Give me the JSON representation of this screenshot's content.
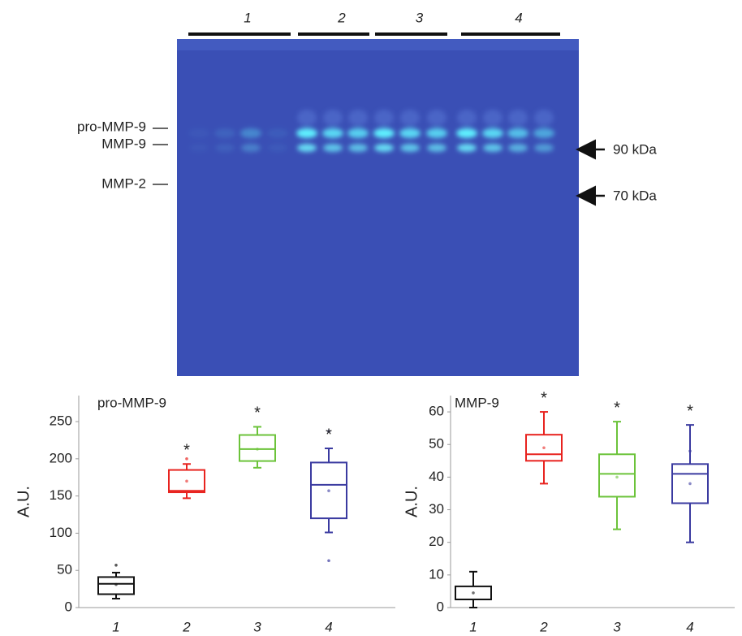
{
  "gel": {
    "lane_groups": [
      "1",
      "2",
      "3",
      "4"
    ],
    "bands": [
      "pro-MMP-9",
      "MMP-9",
      "MMP-2"
    ],
    "markers": [
      "90 kDa",
      "70 kDa"
    ]
  },
  "chart_data": [
    {
      "type": "box",
      "title": "pro-MMP-9",
      "y_label": "A.U.",
      "categories": [
        "1",
        "2",
        "3",
        "4"
      ],
      "ylim": [
        0,
        285
      ],
      "yticks": [
        0,
        50,
        100,
        150,
        200,
        250
      ],
      "annotations": [
        null,
        "*",
        "*",
        "*"
      ],
      "boxes": [
        {
          "color": "#111111",
          "whisker_low": 12,
          "q1": 18,
          "median": 32,
          "q3": 41,
          "whisker_high": 47,
          "mean": 31,
          "outliers": [
            57
          ]
        },
        {
          "color": "#e8231f",
          "whisker_low": 147,
          "q1": 155,
          "median": 157,
          "q3": 185,
          "whisker_high": 193,
          "mean": 170,
          "outliers": [
            200
          ]
        },
        {
          "color": "#6cc33a",
          "whisker_low": 188,
          "q1": 197,
          "median": 213,
          "q3": 232,
          "whisker_high": 243,
          "mean": 213,
          "outliers": []
        },
        {
          "color": "#3a3aa0",
          "whisker_low": 101,
          "q1": 120,
          "median": 165,
          "q3": 195,
          "whisker_high": 214,
          "mean": 157,
          "outliers": [
            237,
            63
          ]
        }
      ]
    },
    {
      "type": "box",
      "title": "MMP-9",
      "y_label": "A.U.",
      "categories": [
        "1",
        "2",
        "3",
        "4"
      ],
      "ylim": [
        0,
        65
      ],
      "yticks": [
        0,
        10,
        20,
        30,
        40,
        50,
        60
      ],
      "annotations": [
        null,
        "*",
        "*",
        "*"
      ],
      "boxes": [
        {
          "color": "#111111",
          "whisker_low": 0,
          "q1": 2.5,
          "median": 2.5,
          "q3": 6.5,
          "whisker_high": 11,
          "mean": 4.5,
          "outliers": []
        },
        {
          "color": "#e8231f",
          "whisker_low": 38,
          "q1": 45,
          "median": 47,
          "q3": 53,
          "whisker_high": 60,
          "mean": 49,
          "outliers": []
        },
        {
          "color": "#6cc33a",
          "whisker_low": 24,
          "q1": 34,
          "median": 41,
          "q3": 47,
          "whisker_high": 57,
          "mean": 40,
          "outliers": []
        },
        {
          "color": "#3a3aa0",
          "whisker_low": 20,
          "q1": 32,
          "median": 41,
          "q3": 44,
          "whisker_high": 56,
          "mean": 38,
          "outliers": [
            48
          ]
        }
      ]
    }
  ]
}
